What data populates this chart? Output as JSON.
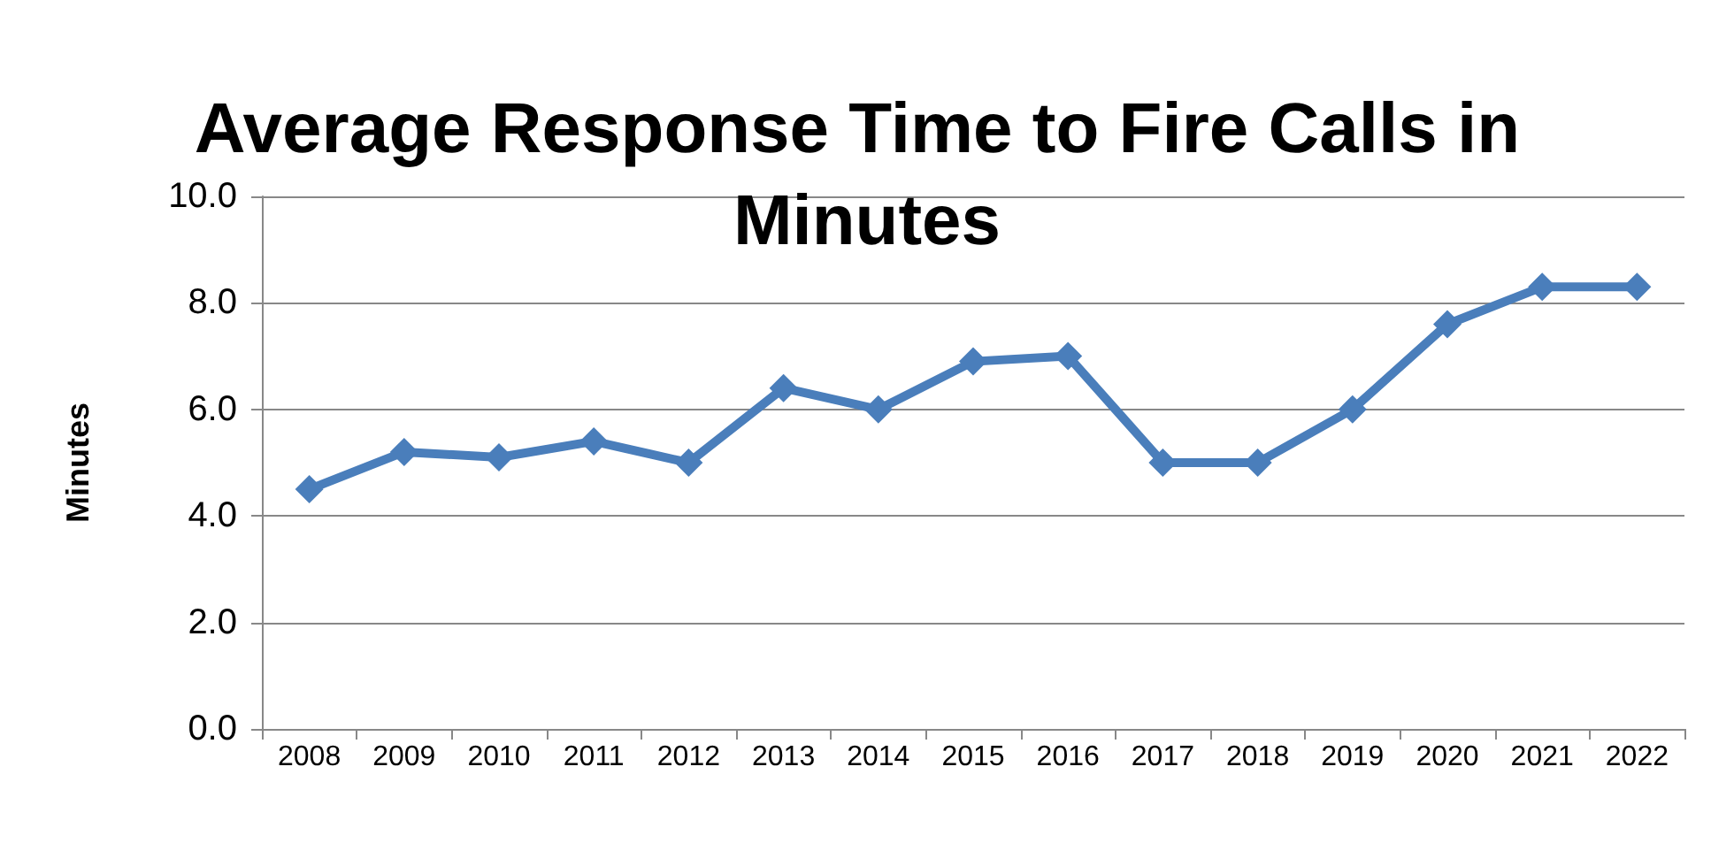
{
  "chart_data": {
    "type": "line",
    "title": "Average Response Time to Fire Calls in Minutes",
    "ylabel": "Minutes",
    "categories": [
      "2008",
      "2009",
      "2010",
      "2011",
      "2012",
      "2013",
      "2014",
      "2015",
      "2016",
      "2017",
      "2018",
      "2019",
      "2020",
      "2021",
      "2022"
    ],
    "series": [
      {
        "color": "#4a7ebb",
        "values": [
          4.5,
          5.2,
          5.1,
          5.4,
          5.0,
          6.4,
          6.0,
          6.9,
          7.0,
          5.0,
          5.0,
          6.0,
          7.6,
          8.3,
          8.3
        ]
      }
    ],
    "ylim": [
      0,
      10
    ],
    "yticks": [
      {
        "value": 0,
        "label": "0.0"
      },
      {
        "value": 2,
        "label": "2.0"
      },
      {
        "value": 4,
        "label": "4.0"
      },
      {
        "value": 6,
        "label": "6.0"
      },
      {
        "value": 8,
        "label": "8.0"
      },
      {
        "value": 10,
        "label": "10.0"
      }
    ],
    "grid": "y",
    "marker": "diamond",
    "line_style": "solid"
  }
}
